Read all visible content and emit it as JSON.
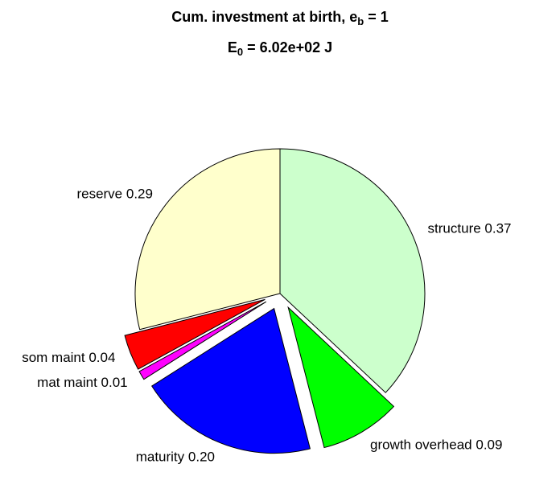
{
  "chart_data": {
    "type": "pie",
    "title": [
      {
        "text": "Cum. investment at birth, e"
      },
      {
        "sub": "b"
      },
      {
        "text": " = 1"
      }
    ],
    "subtitle": [
      {
        "text": "E"
      },
      {
        "sub": "0"
      },
      {
        "text": " = 6.02e+02 J"
      }
    ],
    "categories": [
      "structure",
      "growth overhead",
      "maturity",
      "mat maint",
      "som maint",
      "reserve"
    ],
    "values": [
      0.37,
      0.09,
      0.2,
      0.01,
      0.04,
      0.29
    ],
    "value_labels": [
      "0.37",
      "0.09",
      "0.20",
      "0.01",
      "0.04",
      "0.29"
    ],
    "colors": [
      "#ccffcc",
      "#00ff00",
      "#0000ff",
      "#ff00ff",
      "#ff0000",
      "#ffffcc"
    ],
    "explode": [
      false,
      true,
      true,
      true,
      true,
      false
    ]
  }
}
